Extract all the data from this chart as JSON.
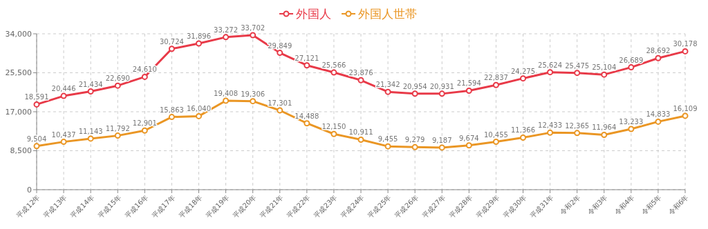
{
  "chart_data": {
    "type": "line",
    "categories": [
      "平成12年",
      "平成13年",
      "平成14年",
      "平成15年",
      "平成16年",
      "平成17年",
      "平成18年",
      "平成19年",
      "平成20年",
      "平成21年",
      "平成22年",
      "平成23年",
      "平成24年",
      "平成25年",
      "平成26年",
      "平成27年",
      "平成28年",
      "平成29年",
      "平成30年",
      "平成31年",
      "令和2年",
      "令和3年",
      "令和4年",
      "令和5年",
      "令和6年"
    ],
    "series": [
      {
        "name": "外国人",
        "color": "#e83a48",
        "values": [
          18591,
          20446,
          21434,
          22690,
          24610,
          30724,
          31896,
          33272,
          33702,
          29849,
          27121,
          25566,
          23876,
          21342,
          20954,
          20931,
          21594,
          22837,
          24275,
          25624,
          25475,
          25104,
          26689,
          28692,
          30178
        ],
        "value_labels": [
          "18,591",
          "20,446",
          "21,434",
          "22,690",
          "24,610",
          "30,724",
          "31,896",
          "33,272",
          "33,702",
          "29,849",
          "27,121",
          "25,566",
          "23,876",
          "21,342",
          "20,954",
          "20,931",
          "21,594",
          "22,837",
          "24,275",
          "25,624",
          "25,475",
          "25,104",
          "26,689",
          "28,692",
          "30,178"
        ]
      },
      {
        "name": "外国人世帯",
        "color": "#ea9624",
        "values": [
          9504,
          10437,
          11143,
          11792,
          12901,
          15863,
          16040,
          19408,
          19306,
          17301,
          14488,
          12150,
          10911,
          9455,
          9279,
          9187,
          9674,
          10455,
          11366,
          12433,
          12365,
          11964,
          13233,
          14833,
          16109
        ],
        "value_labels": [
          "9,504",
          "10,437",
          "11,143",
          "11,792",
          "12,901",
          "15,863",
          "16,040",
          "19,408",
          "19,306",
          "17,301",
          "14,488",
          "12,150",
          "10,911",
          "9,455",
          "9,279",
          "9,187",
          "9,674",
          "10,455",
          "11,366",
          "12,433",
          "12,365",
          "11,964",
          "13,233",
          "14,833",
          "16,109"
        ]
      }
    ],
    "ylim": [
      0,
      34000
    ],
    "yticks": [
      {
        "value": 0,
        "label": "0"
      },
      {
        "value": 8500,
        "label": "8,500"
      },
      {
        "value": 17000,
        "label": "17,000"
      },
      {
        "value": 25500,
        "label": "25,500"
      },
      {
        "value": 34000,
        "label": "34,000"
      }
    ],
    "grid": true,
    "legend": "top",
    "marker": "circle",
    "line_style": "solid"
  }
}
